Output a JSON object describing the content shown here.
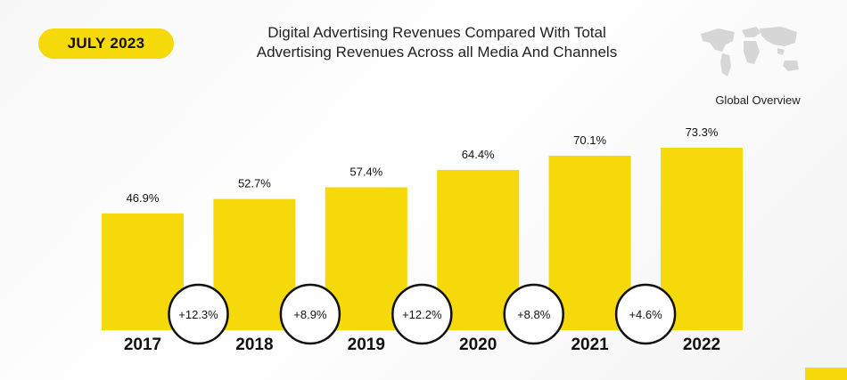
{
  "badge": {
    "date": "JULY 2023",
    "color": "#f5d90a"
  },
  "title": {
    "line1": "Digital Advertising Revenues Compared With Total",
    "line2": "Advertising Revenues Across all Media And Channels"
  },
  "map": {
    "label": "Global Overview",
    "icon": "world-map-icon"
  },
  "chart_data": {
    "type": "bar",
    "title": "Digital Advertising Revenues Compared With Total Advertising Revenues Across all Media And Channels",
    "categories": [
      "2017",
      "2018",
      "2019",
      "2020",
      "2021",
      "2022"
    ],
    "values": [
      46.9,
      52.7,
      57.4,
      64.4,
      70.1,
      73.3
    ],
    "value_labels": [
      "46.9%",
      "52.7%",
      "57.4%",
      "64.4%",
      "70.1%",
      "73.3%"
    ],
    "growth_labels": [
      "+12.3%",
      "+8.9%",
      "+12.2%",
      "+8.8%",
      "+4.6%"
    ],
    "xlabel": "",
    "ylabel": "",
    "bar_color": "#f5d90a"
  }
}
